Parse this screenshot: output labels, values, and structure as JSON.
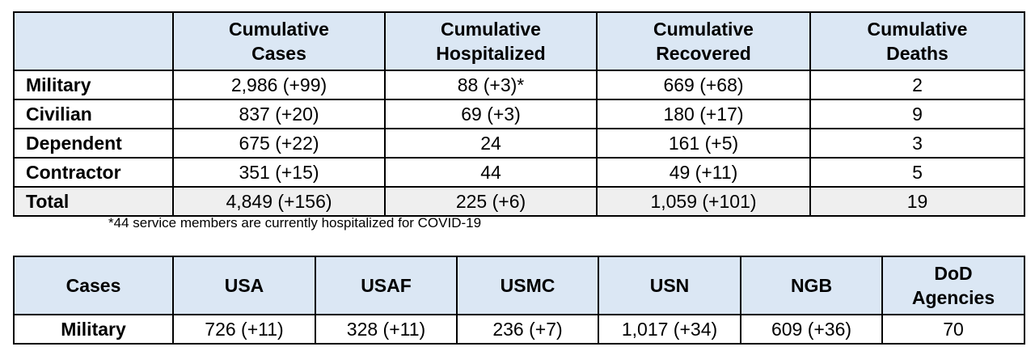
{
  "table1": {
    "headers": [
      "",
      "Cumulative\nCases",
      "Cumulative\nHospitalized",
      "Cumulative\nRecovered",
      "Cumulative\nDeaths"
    ],
    "header_lines": [
      [
        "",
        ""
      ],
      [
        "Cumulative",
        "Cases"
      ],
      [
        "Cumulative",
        "Hospitalized"
      ],
      [
        "Cumulative",
        "Recovered"
      ],
      [
        "Cumulative",
        "Deaths"
      ]
    ],
    "rows": [
      {
        "label": "Military",
        "cases": "2,986 (+99)",
        "hospitalized": "88 (+3)*",
        "recovered": "669 (+68)",
        "deaths": "2"
      },
      {
        "label": "Civilian",
        "cases": "837 (+20)",
        "hospitalized": "69 (+3)",
        "recovered": "180 (+17)",
        "deaths": "9"
      },
      {
        "label": "Dependent",
        "cases": "675 (+22)",
        "hospitalized": "24",
        "recovered": "161 (+5)",
        "deaths": "3"
      },
      {
        "label": "Contractor",
        "cases": "351 (+15)",
        "hospitalized": "44",
        "recovered": "49 (+11)",
        "deaths": "5"
      },
      {
        "label": "Total",
        "cases": "4,849 (+156)",
        "hospitalized": "225 (+6)",
        "recovered": "1,059 (+101)",
        "deaths": "19"
      }
    ]
  },
  "footnote": "*44 service members are currently hospitalized for COVID-19",
  "table2": {
    "headers": [
      "Cases",
      "USA",
      "USAF",
      "USMC",
      "USN",
      "NGB"
    ],
    "last_header_lines": [
      "DoD",
      "Agencies"
    ],
    "row_label": "Military",
    "values": [
      "726 (+11)",
      "328 (+11)",
      "236 (+7)",
      "1,017 (+34)",
      "609 (+36)",
      "70"
    ]
  },
  "colors": {
    "header_bg": "#dbe7f4",
    "total_bg": "#efefef",
    "border": "#000000"
  }
}
